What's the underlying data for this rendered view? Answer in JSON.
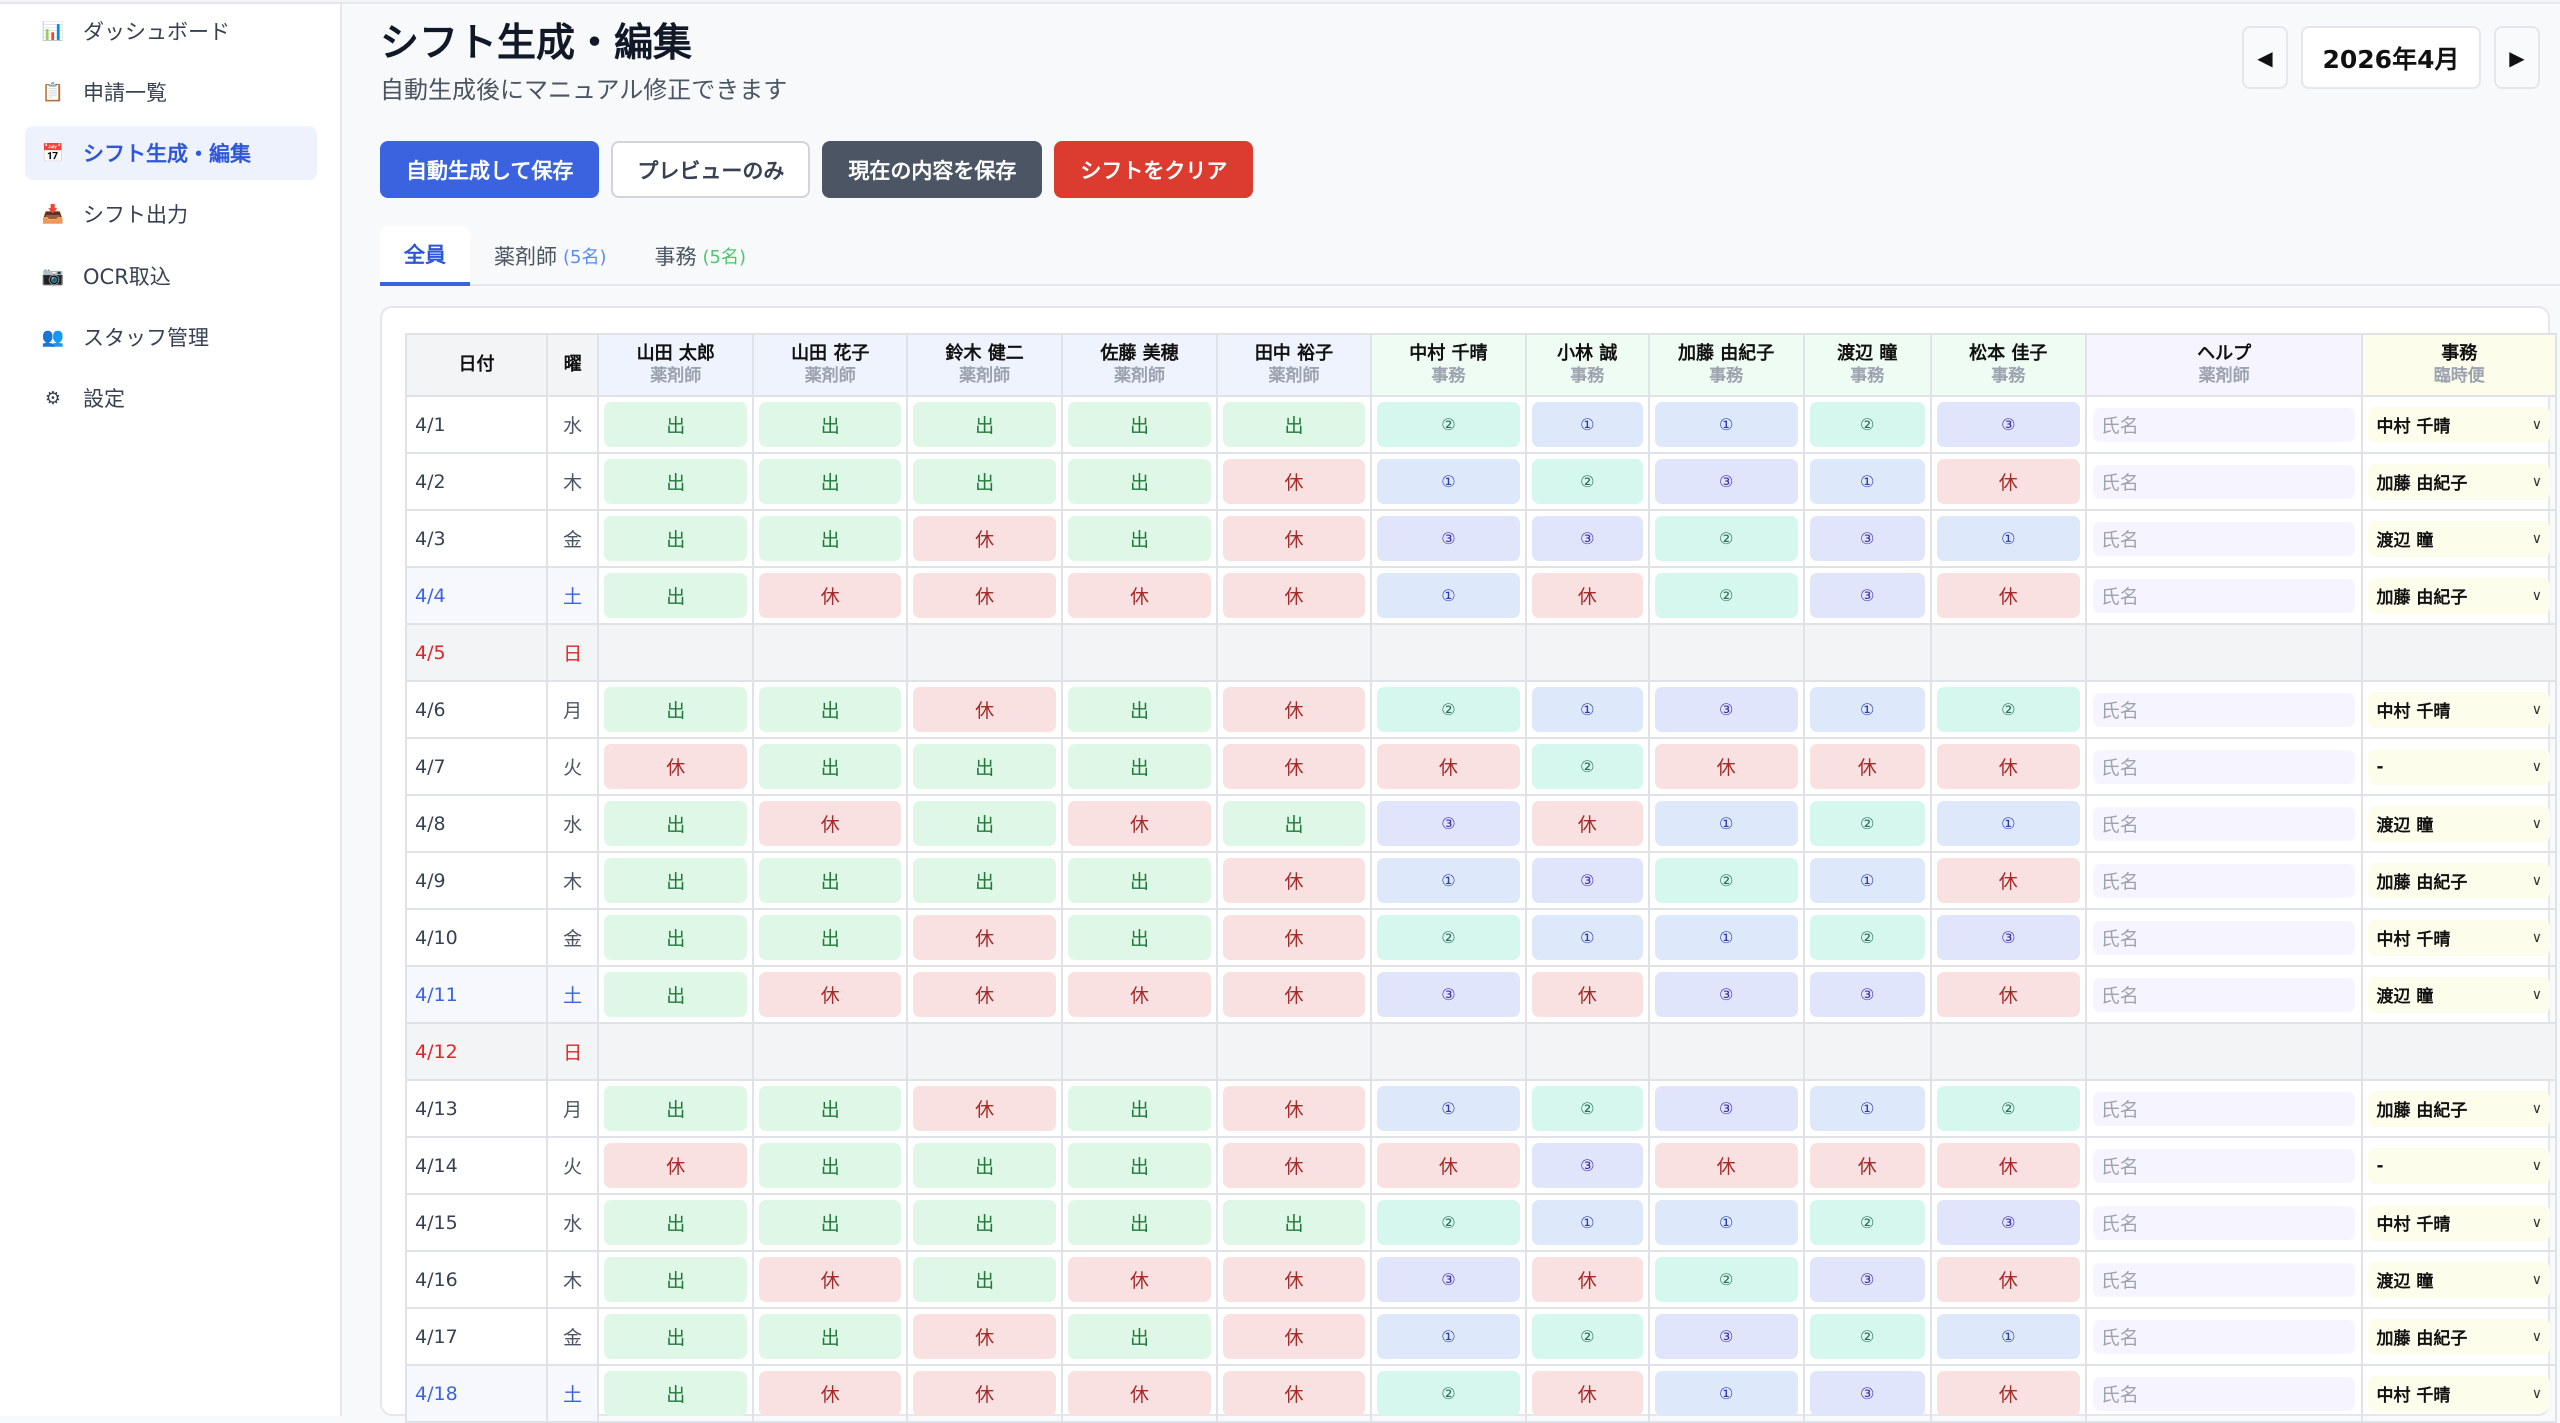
{
  "sidebar": {
    "items": [
      {
        "label": "ダッシュボード",
        "icon": "bar-chart-icon",
        "glyph": "📊"
      },
      {
        "label": "申請一覧",
        "icon": "clipboard-icon",
        "glyph": "📋"
      },
      {
        "label": "シフト生成・編集",
        "icon": "calendar-icon",
        "glyph": "📅",
        "active": true
      },
      {
        "label": "シフト出力",
        "icon": "inbox-download-icon",
        "glyph": "📥"
      },
      {
        "label": "OCR取込",
        "icon": "camera-icon",
        "glyph": "📷"
      },
      {
        "label": "スタッフ管理",
        "icon": "users-icon",
        "glyph": "👥"
      },
      {
        "label": "設定",
        "icon": "gear-icon",
        "glyph": "⚙"
      }
    ]
  },
  "header": {
    "title": "シフト生成・編集",
    "subtitle": "自動生成後にマニュアル修正できます",
    "month": "2026年4月",
    "prev": "◀",
    "next": "▶"
  },
  "actions": {
    "generate": "自動生成して保存",
    "preview": "プレビューのみ",
    "save": "現在の内容を保存",
    "clear": "シフトをクリア"
  },
  "colors": {
    "primary": "#3b63e0",
    "dark": "#4b5563",
    "danger": "#dc3b2f"
  },
  "tabs": [
    {
      "label": "全員"
    },
    {
      "label": "薬剤師",
      "count": "(5名)",
      "color": "#5b8def"
    },
    {
      "label": "事務",
      "count": "(5名)",
      "color": "#4cc76e"
    }
  ],
  "table": {
    "date_header": "日付",
    "dow_header": "曜",
    "pharmacists": [
      {
        "name": "山田 太郎",
        "role": "薬剤師"
      },
      {
        "name": "山田 花子",
        "role": "薬剤師"
      },
      {
        "name": "鈴木 健二",
        "role": "薬剤師"
      },
      {
        "name": "佐藤 美穂",
        "role": "薬剤師"
      },
      {
        "name": "田中 裕子",
        "role": "薬剤師"
      }
    ],
    "clerks": [
      {
        "name": "中村 千晴",
        "role": "事務"
      },
      {
        "name": "小林 誠",
        "role": "事務"
      },
      {
        "name": "加藤 由紀子",
        "role": "事務"
      },
      {
        "name": "渡辺 瞳",
        "role": "事務"
      },
      {
        "name": "松本 佳子",
        "role": "事務"
      }
    ],
    "help": {
      "name": "ヘルプ",
      "role": "薬剤師",
      "placeholder": "氏名"
    },
    "office": {
      "name": "事務",
      "role": "臨時便"
    },
    "rows": [
      {
        "date": "4/1",
        "dow": "水",
        "type": "weekday",
        "ph": [
          "出",
          "出",
          "出",
          "出",
          "出"
        ],
        "cl": [
          "②",
          "①",
          "①",
          "②",
          "③"
        ],
        "office": "中村 千晴"
      },
      {
        "date": "4/2",
        "dow": "木",
        "type": "weekday",
        "ph": [
          "出",
          "出",
          "出",
          "出",
          "休"
        ],
        "cl": [
          "①",
          "②",
          "③",
          "①",
          "休"
        ],
        "office": "加藤 由紀子"
      },
      {
        "date": "4/3",
        "dow": "金",
        "type": "weekday",
        "ph": [
          "出",
          "出",
          "休",
          "出",
          "休"
        ],
        "cl": [
          "③",
          "③",
          "②",
          "③",
          "①"
        ],
        "office": "渡辺 瞳"
      },
      {
        "date": "4/4",
        "dow": "土",
        "type": "sat",
        "ph": [
          "出",
          "休",
          "休",
          "休",
          "休"
        ],
        "cl": [
          "①",
          "休",
          "②",
          "③",
          "休"
        ],
        "office": "加藤 由紀子"
      },
      {
        "date": "4/5",
        "dow": "日",
        "type": "sun"
      },
      {
        "date": "4/6",
        "dow": "月",
        "type": "weekday",
        "ph": [
          "出",
          "出",
          "休",
          "出",
          "休"
        ],
        "cl": [
          "②",
          "①",
          "③",
          "①",
          "②"
        ],
        "office": "中村 千晴"
      },
      {
        "date": "4/7",
        "dow": "火",
        "type": "weekday",
        "ph": [
          "休",
          "出",
          "出",
          "出",
          "休"
        ],
        "cl": [
          "休",
          "②",
          "休",
          "休",
          "休"
        ],
        "office": "-"
      },
      {
        "date": "4/8",
        "dow": "水",
        "type": "weekday",
        "ph": [
          "出",
          "休",
          "出",
          "休",
          "出"
        ],
        "cl": [
          "③",
          "休",
          "①",
          "②",
          "①"
        ],
        "office": "渡辺 瞳"
      },
      {
        "date": "4/9",
        "dow": "木",
        "type": "weekday",
        "ph": [
          "出",
          "出",
          "出",
          "出",
          "休"
        ],
        "cl": [
          "①",
          "③",
          "②",
          "①",
          "休"
        ],
        "office": "加藤 由紀子"
      },
      {
        "date": "4/10",
        "dow": "金",
        "type": "weekday",
        "ph": [
          "出",
          "出",
          "休",
          "出",
          "休"
        ],
        "cl": [
          "②",
          "①",
          "①",
          "②",
          "③"
        ],
        "office": "中村 千晴"
      },
      {
        "date": "4/11",
        "dow": "土",
        "type": "sat",
        "ph": [
          "出",
          "休",
          "休",
          "休",
          "休"
        ],
        "cl": [
          "③",
          "休",
          "③",
          "③",
          "休"
        ],
        "office": "渡辺 瞳"
      },
      {
        "date": "4/12",
        "dow": "日",
        "type": "sun"
      },
      {
        "date": "4/13",
        "dow": "月",
        "type": "weekday",
        "ph": [
          "出",
          "出",
          "休",
          "出",
          "休"
        ],
        "cl": [
          "①",
          "②",
          "③",
          "①",
          "②"
        ],
        "office": "加藤 由紀子"
      },
      {
        "date": "4/14",
        "dow": "火",
        "type": "weekday",
        "ph": [
          "休",
          "出",
          "出",
          "出",
          "休"
        ],
        "cl": [
          "休",
          "③",
          "休",
          "休",
          "休"
        ],
        "office": "-"
      },
      {
        "date": "4/15",
        "dow": "水",
        "type": "weekday",
        "ph": [
          "出",
          "出",
          "出",
          "出",
          "出"
        ],
        "cl": [
          "②",
          "①",
          "①",
          "②",
          "③"
        ],
        "office": "中村 千晴"
      },
      {
        "date": "4/16",
        "dow": "木",
        "type": "weekday",
        "ph": [
          "出",
          "休",
          "出",
          "休",
          "休"
        ],
        "cl": [
          "③",
          "休",
          "②",
          "③",
          "休"
        ],
        "office": "渡辺 瞳"
      },
      {
        "date": "4/17",
        "dow": "金",
        "type": "weekday",
        "ph": [
          "出",
          "出",
          "休",
          "出",
          "休"
        ],
        "cl": [
          "①",
          "②",
          "③",
          "②",
          "①"
        ],
        "office": "加藤 由紀子"
      },
      {
        "date": "4/18",
        "dow": "土",
        "type": "sat",
        "ph": [
          "出",
          "休",
          "休",
          "休",
          "休"
        ],
        "cl": [
          "②",
          "休",
          "①",
          "③",
          "休"
        ],
        "office": "中村 千晴"
      }
    ]
  }
}
